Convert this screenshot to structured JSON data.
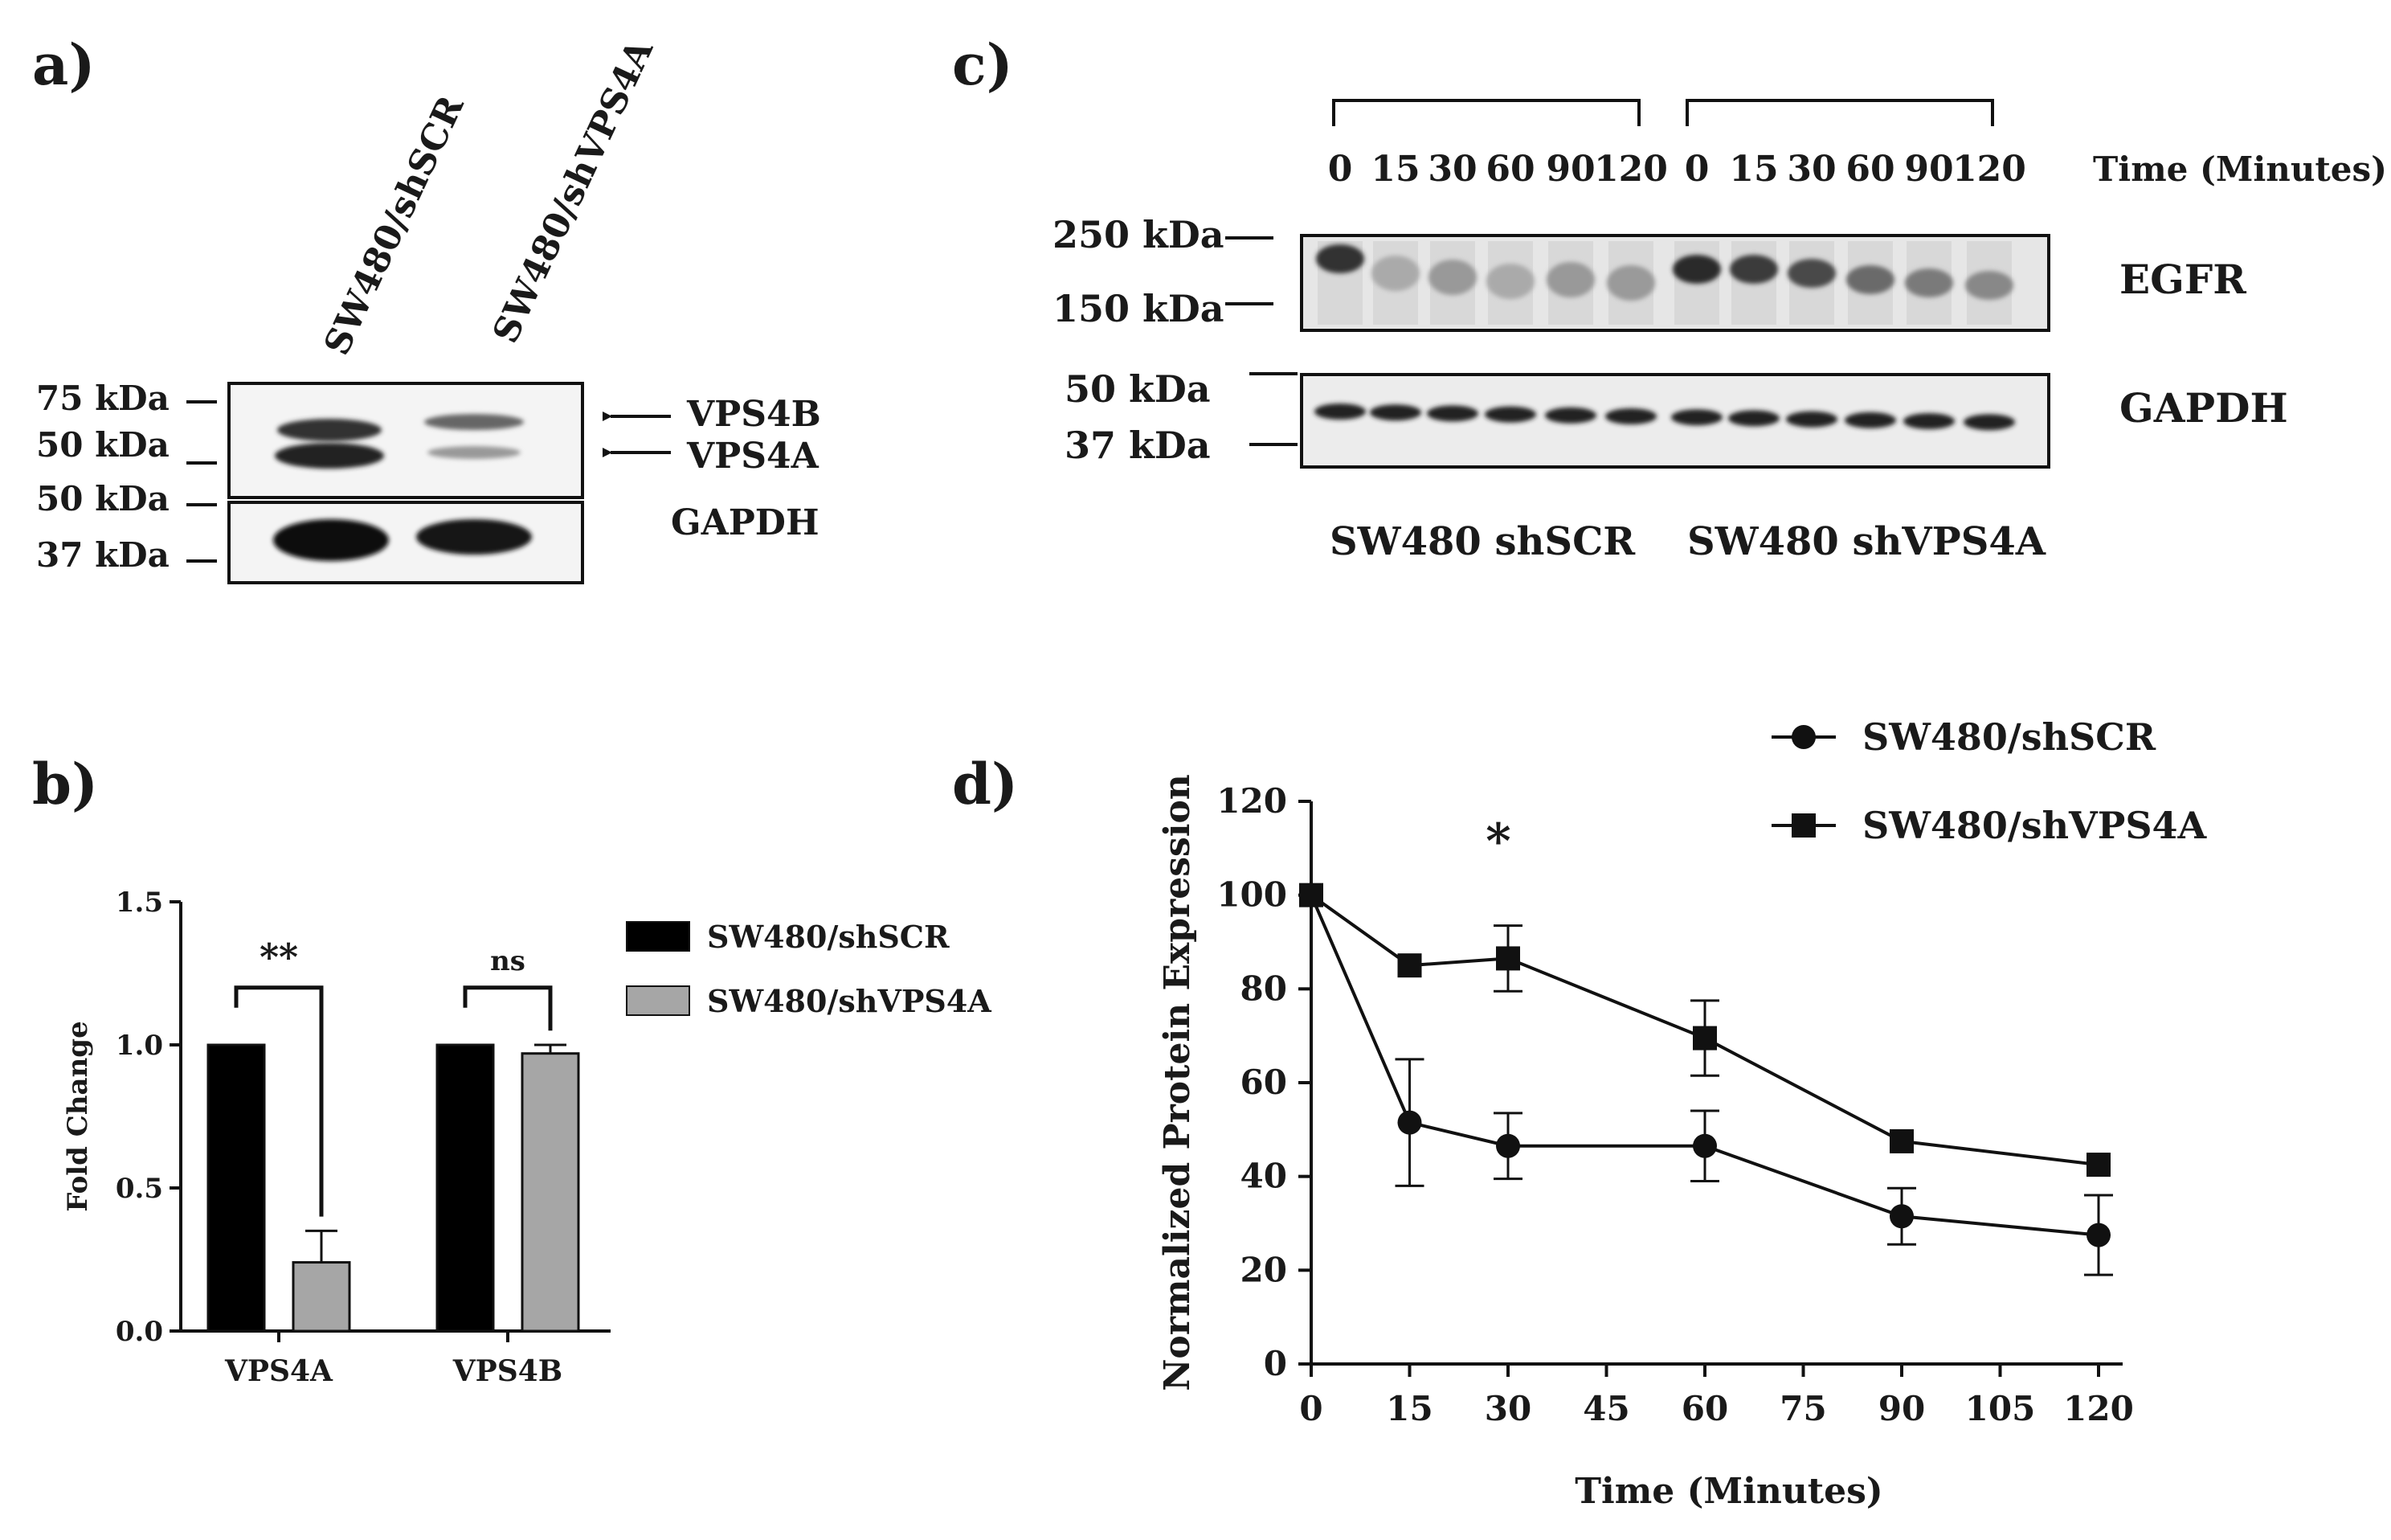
{
  "panel_labels": [
    "a)",
    "b)",
    "c)",
    "d)"
  ],
  "panel_a": {
    "lanes": [
      "SW480/shSCR",
      "SW480/shVPS4A"
    ],
    "markers_top": [
      "75 kDa",
      "50 kDa"
    ],
    "markers_bottom": [
      "50 kDa",
      "37 kDa"
    ],
    "band_labels": [
      "VPS4B",
      "VPS4A"
    ],
    "gapdh_label": "GAPDH"
  },
  "panel_c": {
    "time_points": [
      "0",
      "15",
      "30",
      "60",
      "90",
      "120"
    ],
    "time_label": "Time (Minutes)",
    "markers_top": [
      "250 kDa",
      "150 kDa"
    ],
    "markers_bottom": [
      "50 kDa",
      "37 kDa"
    ],
    "blot_labels": [
      "EGFR",
      "GAPDH"
    ],
    "groups": [
      "SW480 shSCR",
      "SW480 shVPS4A"
    ]
  },
  "chart_data": [
    {
      "type": "bar",
      "categories": [
        "VPS4A",
        "VPS4B"
      ],
      "series": [
        {
          "name": "SW480/shSCR",
          "values": [
            1.0,
            1.0
          ],
          "errors": [
            0,
            0
          ],
          "color": "#000000"
        },
        {
          "name": "SW480/shVPS4A",
          "values": [
            0.24,
            0.97
          ],
          "errors": [
            0.11,
            0.03
          ],
          "color": "#a6a6a6"
        }
      ],
      "ylabel": "Fold Change",
      "ylim": [
        0,
        1.5
      ],
      "yticks": [
        "0.0",
        "0.5",
        "1.0",
        "1.5"
      ],
      "significance": [
        "**",
        "ns"
      ],
      "legend": "right"
    },
    {
      "type": "line",
      "x": [
        0,
        15,
        30,
        60,
        90,
        120
      ],
      "series": [
        {
          "name": "SW480/shSCR",
          "marker": "circle",
          "values": [
            100,
            51.5,
            46.5,
            46.5,
            31.5,
            27.5
          ],
          "errors": [
            0,
            13.5,
            7,
            7.5,
            6,
            8.5
          ]
        },
        {
          "name": "SW480/shVPS4A",
          "marker": "square",
          "values": [
            100,
            85,
            86.5,
            69.5,
            47.5,
            42.5
          ],
          "errors": [
            0,
            0,
            7,
            8,
            0,
            0
          ]
        }
      ],
      "xlabel": "Time (Minutes)",
      "ylabel": "Normalized Protein Expression",
      "xlim": [
        0,
        120
      ],
      "ylim": [
        0,
        120
      ],
      "xticks": [
        "0",
        "15",
        "30",
        "45",
        "60",
        "75",
        "90",
        "105",
        "120"
      ],
      "yticks": [
        "0",
        "20",
        "40",
        "60",
        "80",
        "100",
        "120"
      ],
      "annotation": "*",
      "legend": "top-right"
    }
  ]
}
